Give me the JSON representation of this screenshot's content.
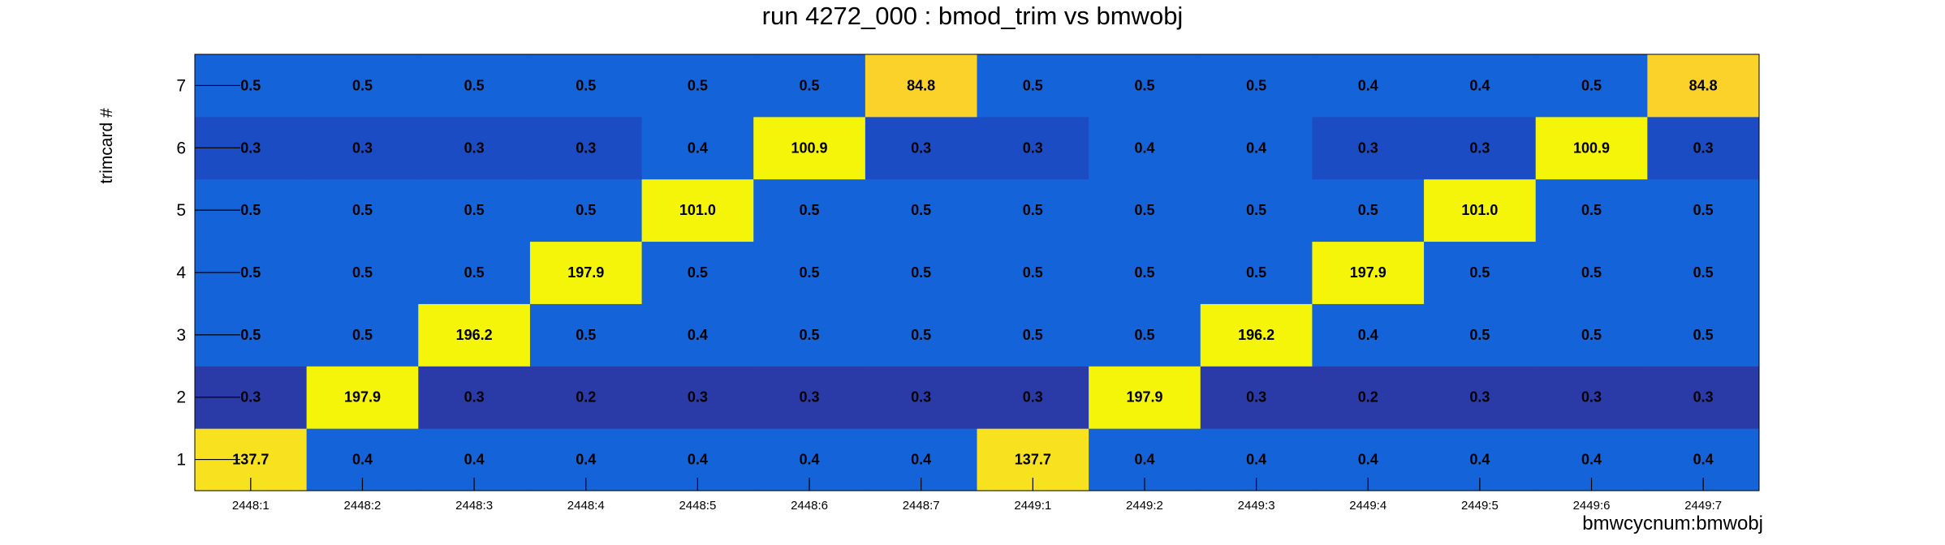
{
  "chart_data": {
    "type": "heatmap",
    "title": "run 4272_000 : bmod_trim vs bmwobj",
    "xlabel": "bmwcycnum:bmwobj",
    "ylabel": "trimcard #",
    "x_categories": [
      "2448:1",
      "2448:2",
      "2448:3",
      "2448:4",
      "2448:5",
      "2448:6",
      "2448:7",
      "2449:1",
      "2449:2",
      "2449:3",
      "2449:4",
      "2449:5",
      "2449:6",
      "2449:7"
    ],
    "y_categories": [
      "1",
      "2",
      "3",
      "4",
      "5",
      "6",
      "7"
    ],
    "values": [
      [
        "137.7",
        "0.4",
        "0.4",
        "0.4",
        "0.4",
        "0.4",
        "0.4",
        "137.7",
        "0.4",
        "0.4",
        "0.4",
        "0.4",
        "0.4",
        "0.4"
      ],
      [
        "0.3",
        "197.9",
        "0.3",
        "0.2",
        "0.3",
        "0.3",
        "0.3",
        "0.3",
        "197.9",
        "0.3",
        "0.2",
        "0.3",
        "0.3",
        "0.3"
      ],
      [
        "0.5",
        "0.5",
        "196.2",
        "0.5",
        "0.4",
        "0.5",
        "0.5",
        "0.5",
        "0.5",
        "196.2",
        "0.4",
        "0.5",
        "0.5",
        "0.5"
      ],
      [
        "0.5",
        "0.5",
        "0.5",
        "197.9",
        "0.5",
        "0.5",
        "0.5",
        "0.5",
        "0.5",
        "0.5",
        "197.9",
        "0.5",
        "0.5",
        "0.5"
      ],
      [
        "0.5",
        "0.5",
        "0.5",
        "0.5",
        "101.0",
        "0.5",
        "0.5",
        "0.5",
        "0.5",
        "0.5",
        "0.5",
        "101.0",
        "0.5",
        "0.5"
      ],
      [
        "0.3",
        "0.3",
        "0.3",
        "0.3",
        "0.4",
        "100.9",
        "0.3",
        "0.3",
        "0.4",
        "0.4",
        "0.3",
        "0.3",
        "100.9",
        "0.3"
      ],
      [
        "0.5",
        "0.5",
        "0.5",
        "0.5",
        "0.5",
        "0.5",
        "84.8",
        "0.5",
        "0.5",
        "0.5",
        "0.4",
        "0.4",
        "0.5",
        "84.8"
      ]
    ],
    "cell_colors": {
      "high": "#f5f50a",
      "mid_high": "#f8e11e",
      "orange": "#fad22a",
      "blue": "#1563d8",
      "dark_blue": "#1b4cc4",
      "navy": "#2a3ba8"
    },
    "grid": false
  }
}
